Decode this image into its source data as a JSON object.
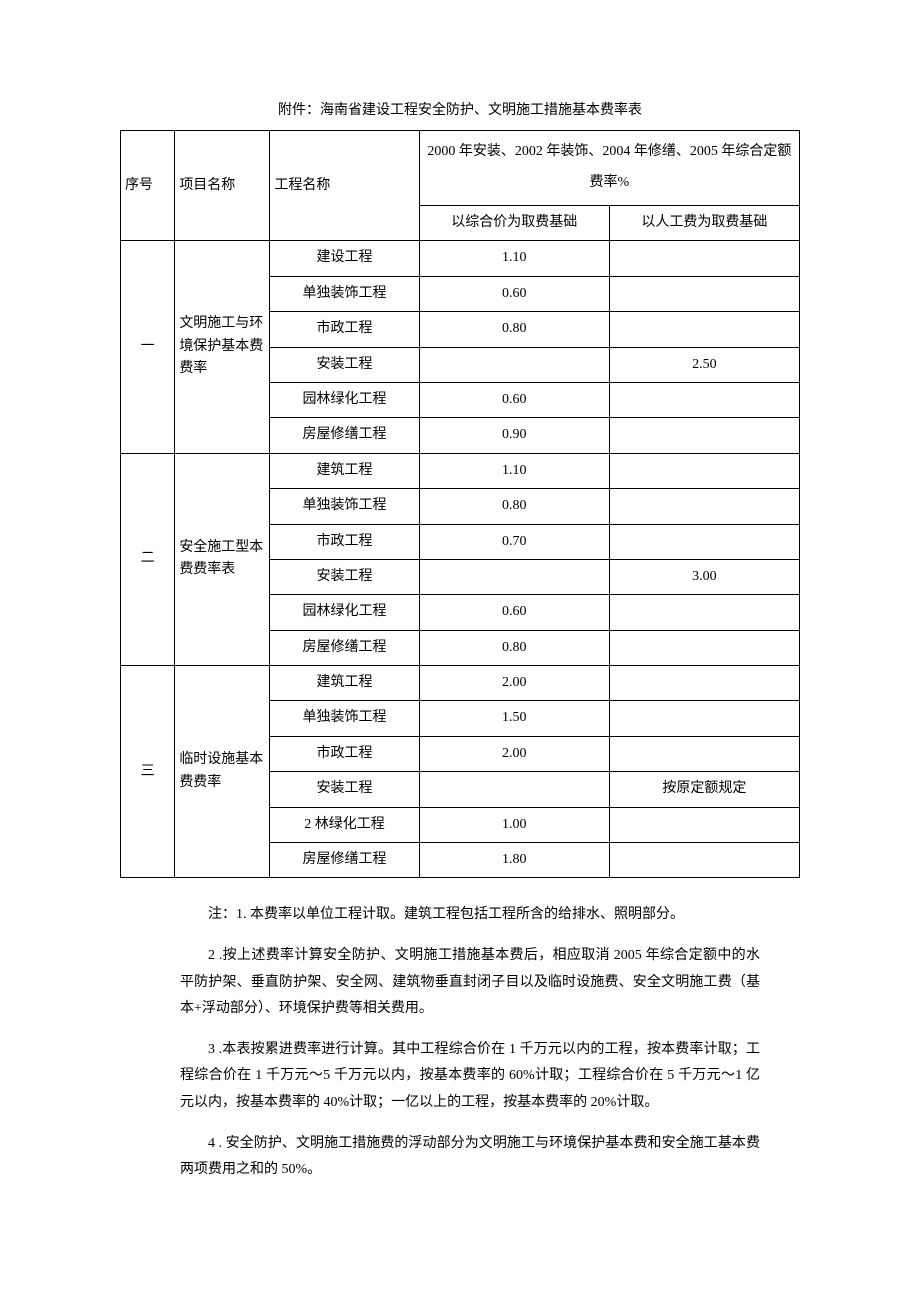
{
  "title": "附件：海南省建设工程安全防护、文明施工措施基本费率表",
  "table": {
    "col_widths": [
      "8%",
      "14%",
      "22%",
      "28%",
      "28%"
    ],
    "head": {
      "c0": "序号",
      "c1": "项目名称",
      "c2": "工程名称",
      "c3_top": "2000 年安装、2002 年装饰、2004 年修缮、2005 年综合定额费率%",
      "c3_a": "以综合价为取费基础",
      "c3_b": "以人工费为取费基础"
    },
    "sections": [
      {
        "seq": "一",
        "name": "文明施工与环境保护基本费费率",
        "rows": [
          {
            "proj": "建设工程",
            "a": "1.10",
            "b": ""
          },
          {
            "proj": "单独装饰工程",
            "a": "0.60",
            "b": ""
          },
          {
            "proj": "市政工程",
            "a": "0.80",
            "b": ""
          },
          {
            "proj": "安装工程",
            "a": "",
            "b": "2.50"
          },
          {
            "proj": "园林绿化工程",
            "a": "0.60",
            "b": ""
          },
          {
            "proj": "房屋修缮工程",
            "a": "0.90",
            "b": ""
          }
        ]
      },
      {
        "seq": "二",
        "name": "安全施工型本费费率表",
        "rows": [
          {
            "proj": "建筑工程",
            "a": "1.10",
            "b": ""
          },
          {
            "proj": "单独装饰工程",
            "a": "0.80",
            "b": ""
          },
          {
            "proj": "市政工程",
            "a": "0.70",
            "b": ""
          },
          {
            "proj": "安装工程",
            "a": "",
            "b": "3.00"
          },
          {
            "proj": "园林绿化工程",
            "a": "0.60",
            "b": ""
          },
          {
            "proj": "房屋修缮工程",
            "a": "0.80",
            "b": ""
          }
        ]
      },
      {
        "seq": "三",
        "name": "临时设施基本费费率",
        "rows": [
          {
            "proj": "建筑工程",
            "a": "2.00",
            "b": ""
          },
          {
            "proj": "单独装饰工程",
            "a": "1.50",
            "b": ""
          },
          {
            "proj": "市政工程",
            "a": "2.00",
            "b": ""
          },
          {
            "proj": "安装工程",
            "a": "",
            "b": "按原定额规定"
          },
          {
            "proj": "2 林绿化工程",
            "a": "1.00",
            "b": ""
          },
          {
            "proj": "房屋修缮工程",
            "a": "1.80",
            "b": ""
          }
        ]
      }
    ]
  },
  "notes": {
    "n1": "注：1. 本费率以单位工程计取。建筑工程包括工程所含的给排水、照明部分。",
    "n2": "2 .按上述费率计算安全防护、文明施工措施基本费后，相应取消 2005 年综合定额中的水平防护架、垂直防护架、安全网、建筑物垂直封闭子目以及临时设施费、安全文明施工费（基本+浮动部分）、环境保护费等相关费用。",
    "n3": "3 .本表按累进费率进行计算。其中工程综合价在 1 千万元以内的工程，按本费率计取；工程综合价在 1 千万元～5 千万元以内，按基本费率的 60%计取；工程综合价在 5 千万元～1 亿元以内，按基本费率的 40%计取；一亿以上的工程，按基本费率的 20%计取。",
    "n4": "4 . 安全防护、文明施工措施费的浮动部分为文明施工与环境保护基本费和安全施工基本费两项费用之和的 50%。"
  }
}
